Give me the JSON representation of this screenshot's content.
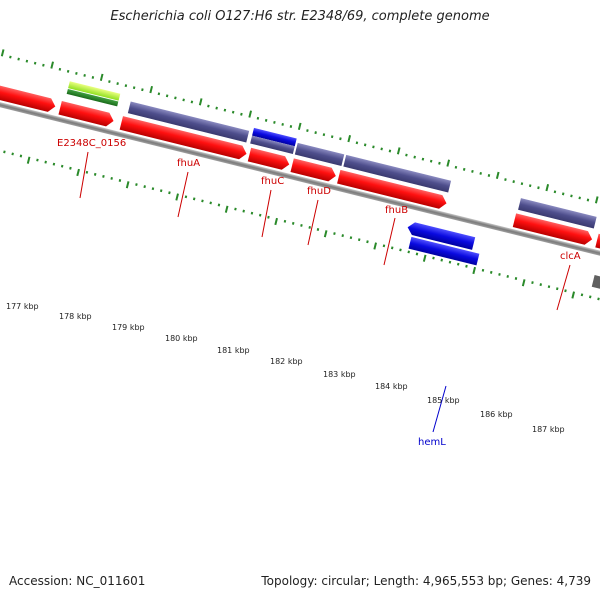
{
  "title": "Escherichia coli O127:H6 str. E2348/69, complete genome",
  "footer": {
    "accession": "Accession: NC_011601",
    "summary": "Topology: circular; Length: 4,965,553 bp; Genes: 4,739"
  },
  "gene_labels": [
    {
      "text": "E2348C_0156",
      "color": "#cc0000"
    },
    {
      "text": "fhuA",
      "color": "#cc0000"
    },
    {
      "text": "fhuC",
      "color": "#cc0000"
    },
    {
      "text": "fhuD",
      "color": "#cc0000"
    },
    {
      "text": "fhuB",
      "color": "#cc0000"
    },
    {
      "text": "clcA",
      "color": "#cc0000"
    },
    {
      "text": "hemL",
      "color": "#0000cc"
    }
  ],
  "ruler_labels": [
    "177 kbp",
    "178 kbp",
    "179 kbp",
    "180 kbp",
    "181 kbp",
    "182 kbp",
    "183 kbp",
    "184 kbp",
    "185 kbp",
    "186 kbp",
    "187 kbp"
  ],
  "colors": {
    "cds_red": "#ff1a1a",
    "gene_purple": "#5a5a9a",
    "gene_blue": "#1010e0",
    "gene_green": "#228b22",
    "gene_lightgreen": "#aaff22",
    "tick_green": "#2a8a2a",
    "backbone_gray": "#888888"
  }
}
